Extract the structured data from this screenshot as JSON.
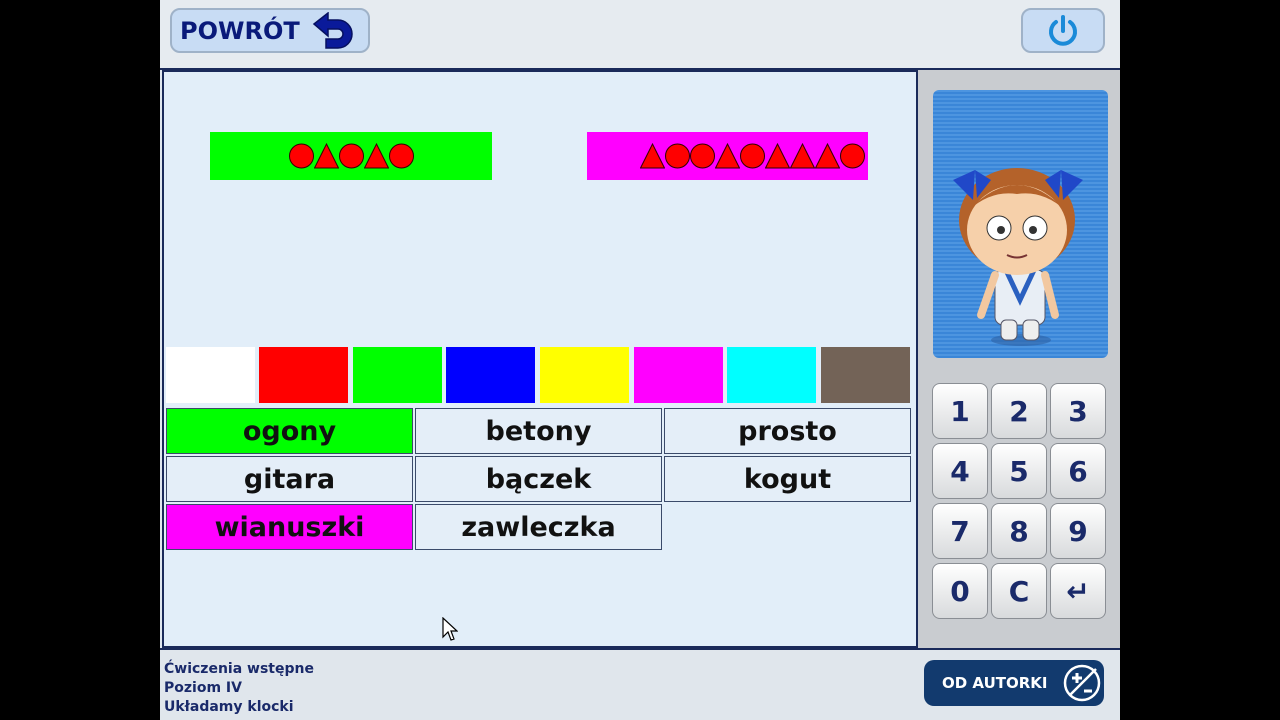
{
  "header": {
    "back_label": "POWRÓT",
    "back_icon": "undo-arrow-icon",
    "power_icon": "power-icon"
  },
  "sequences": [
    {
      "color": "#00ff00",
      "shapes": [
        "circle",
        "triangle",
        "circle",
        "triangle",
        "circle"
      ]
    },
    {
      "color": "#ff00ff",
      "shapes": [
        "triangle",
        "circle",
        "circle",
        "triangle",
        "circle",
        "triangle",
        "triangle",
        "triangle",
        "circle"
      ]
    }
  ],
  "shape_color": "#ff0000",
  "palette": [
    "#ffffff",
    "#ff0000",
    "#00ff00",
    "#0000ff",
    "#ffff00",
    "#ff00ff",
    "#00ffff",
    "#736357"
  ],
  "words": [
    {
      "text": "ogony",
      "color": "#00ff00"
    },
    {
      "text": "betony",
      "color": ""
    },
    {
      "text": "prosto",
      "color": ""
    },
    {
      "text": "gitara",
      "color": ""
    },
    {
      "text": "bączek",
      "color": ""
    },
    {
      "text": "kogut",
      "color": ""
    },
    {
      "text": "wianuszki",
      "color": "#ff00ff"
    },
    {
      "text": "zawleczka",
      "color": ""
    }
  ],
  "keypad": [
    "1",
    "2",
    "3",
    "4",
    "5",
    "6",
    "7",
    "8",
    "9",
    "0",
    "C",
    "↵"
  ],
  "footer": {
    "line1": "Ćwiczenia wstępne",
    "line2": "Poziom IV",
    "line3": "Układamy klocki",
    "author_label": "OD AUTORKI",
    "author_icon": "plus-minus-icon"
  }
}
